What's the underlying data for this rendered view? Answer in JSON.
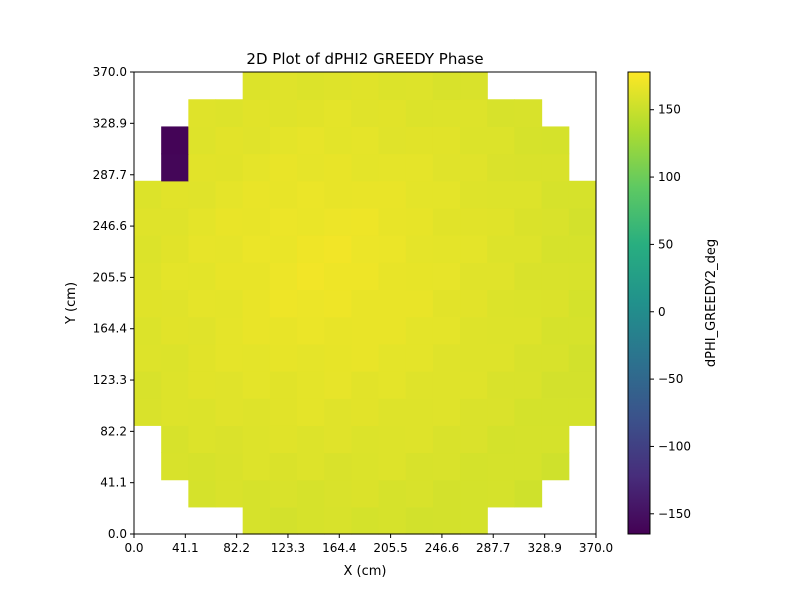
{
  "chart_data": {
    "type": "heatmap",
    "title": "2D Plot of dPHI2 GREEDY Phase",
    "xlabel": "X (cm)",
    "ylabel": "Y (cm)",
    "colorbar_label": "dPHI_GREEDY2_deg",
    "colormap": "viridis",
    "xlim": [
      0,
      370
    ],
    "ylim": [
      0,
      370
    ],
    "xticks": [
      "0.0",
      "41.1",
      "82.2",
      "123.3",
      "164.4",
      "205.5",
      "246.6",
      "287.7",
      "328.9",
      "370.0"
    ],
    "yticks": [
      "0.0",
      "41.1",
      "82.2",
      "123.3",
      "164.4",
      "205.5",
      "246.6",
      "287.7",
      "328.9",
      "370.0"
    ],
    "color_range": [
      -165,
      178
    ],
    "colorbar_ticks": [
      "150",
      "100",
      "50",
      "0",
      "−50",
      "−100",
      "−150"
    ],
    "colorbar_tick_values": [
      150,
      100,
      50,
      0,
      -50,
      -100,
      -150
    ],
    "grid_size": [
      17,
      17
    ],
    "cell_size": 21.76,
    "row_x_spans": [
      [
        4,
        12
      ],
      [
        2,
        14
      ],
      [
        1,
        15
      ],
      [
        1,
        15
      ],
      [
        0,
        16
      ],
      [
        0,
        16
      ],
      [
        0,
        16
      ],
      [
        0,
        16
      ],
      [
        0,
        16
      ],
      [
        0,
        16
      ],
      [
        0,
        16
      ],
      [
        0,
        16
      ],
      [
        0,
        16
      ],
      [
        1,
        15
      ],
      [
        1,
        15
      ],
      [
        2,
        14
      ],
      [
        4,
        12
      ]
    ],
    "low_value_cells": [
      {
        "col": 1,
        "row": 13,
        "value": -160
      },
      {
        "col": 1,
        "row": 14,
        "value": -162
      }
    ],
    "typical_value": 160
  }
}
